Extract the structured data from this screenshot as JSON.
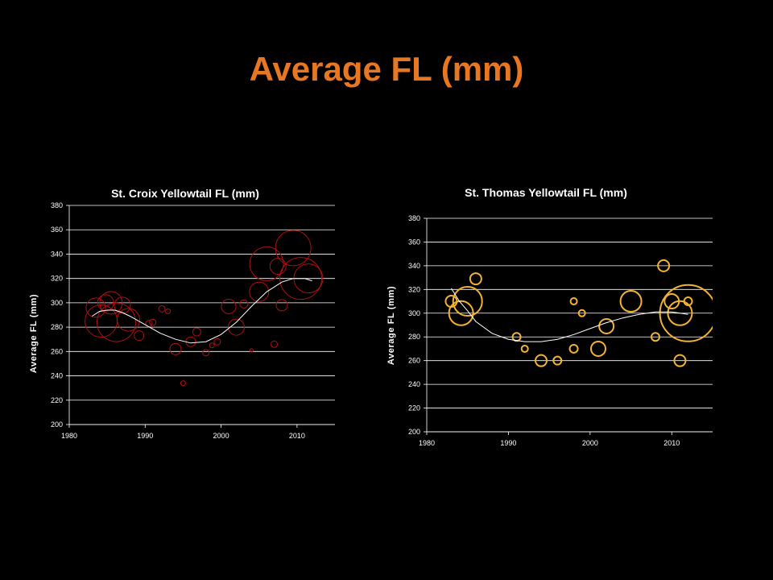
{
  "page_title": "Average FL (mm)",
  "colors": {
    "background": "#000000",
    "title": "#E87722",
    "croix_bubble": "#B01010",
    "thomas_bubble": "#F2B233",
    "trend": "#ffffff",
    "grid": "#ffffff"
  },
  "chart_data": [
    {
      "id": "croix",
      "type": "scatter",
      "subtype": "bubble",
      "title": "St. Croix Yellowtail FL (mm)",
      "ylabel": "Average FL (mm)",
      "xlabel": "",
      "xlim": [
        1980,
        2015
      ],
      "ylim": [
        200,
        380
      ],
      "xticks": [
        "1980",
        "1990",
        "2000",
        "2010"
      ],
      "yticks": [
        "200",
        "220",
        "240",
        "260",
        "280",
        "300",
        "320",
        "340",
        "360",
        "380"
      ],
      "grid": "horizontal",
      "bubble_color": "#B01010",
      "points": [
        {
          "x": 1983.5,
          "y": 296,
          "r": 12
        },
        {
          "x": 1984.2,
          "y": 285,
          "r": 20
        },
        {
          "x": 1984.8,
          "y": 300,
          "r": 10
        },
        {
          "x": 1985.5,
          "y": 300,
          "r": 14
        },
        {
          "x": 1986.2,
          "y": 284,
          "r": 24
        },
        {
          "x": 1987.0,
          "y": 298,
          "r": 10
        },
        {
          "x": 1987.8,
          "y": 286,
          "r": 14
        },
        {
          "x": 1989.2,
          "y": 273,
          "r": 6
        },
        {
          "x": 1990.5,
          "y": 283,
          "r": 4
        },
        {
          "x": 1991.0,
          "y": 284,
          "r": 4
        },
        {
          "x": 1992.2,
          "y": 295,
          "r": 4
        },
        {
          "x": 1993.0,
          "y": 293,
          "r": 3
        },
        {
          "x": 1994.0,
          "y": 262,
          "r": 7
        },
        {
          "x": 1995.0,
          "y": 234,
          "r": 3
        },
        {
          "x": 1996.0,
          "y": 268,
          "r": 6
        },
        {
          "x": 1996.8,
          "y": 276,
          "r": 5
        },
        {
          "x": 1998.0,
          "y": 259,
          "r": 4
        },
        {
          "x": 1998.8,
          "y": 265,
          "r": 3
        },
        {
          "x": 1999.5,
          "y": 268,
          "r": 4
        },
        {
          "x": 2001.0,
          "y": 297,
          "r": 9
        },
        {
          "x": 2002.0,
          "y": 280,
          "r": 10
        },
        {
          "x": 2003.0,
          "y": 299,
          "r": 5
        },
        {
          "x": 2004.0,
          "y": 261,
          "r": 2
        },
        {
          "x": 2005.0,
          "y": 309,
          "r": 12
        },
        {
          "x": 2006.0,
          "y": 332,
          "r": 21
        },
        {
          "x": 2007.0,
          "y": 266,
          "r": 4
        },
        {
          "x": 2007.5,
          "y": 330,
          "r": 10
        },
        {
          "x": 2008.0,
          "y": 298,
          "r": 7
        },
        {
          "x": 2009.5,
          "y": 345,
          "r": 22
        },
        {
          "x": 2010.5,
          "y": 320,
          "r": 26
        },
        {
          "x": 2011.5,
          "y": 320,
          "r": 18
        }
      ],
      "trend": [
        {
          "x": 1983,
          "y": 289
        },
        {
          "x": 1984,
          "y": 293
        },
        {
          "x": 1985,
          "y": 294
        },
        {
          "x": 1986,
          "y": 294
        },
        {
          "x": 1987,
          "y": 292
        },
        {
          "x": 1988,
          "y": 289
        },
        {
          "x": 1990,
          "y": 282
        },
        {
          "x": 1992,
          "y": 275
        },
        {
          "x": 1994,
          "y": 270
        },
        {
          "x": 1996,
          "y": 267
        },
        {
          "x": 1998,
          "y": 268
        },
        {
          "x": 2000,
          "y": 274
        },
        {
          "x": 2002,
          "y": 284
        },
        {
          "x": 2004,
          "y": 297
        },
        {
          "x": 2006,
          "y": 309
        },
        {
          "x": 2008,
          "y": 317
        },
        {
          "x": 2009.5,
          "y": 320
        },
        {
          "x": 2011,
          "y": 320
        },
        {
          "x": 2012,
          "y": 318
        }
      ]
    },
    {
      "id": "thomas",
      "type": "scatter",
      "subtype": "bubble",
      "title": "St. Thomas Yellowtail FL (mm)",
      "ylabel": "Average FL (mm)",
      "xlabel": "",
      "xlim": [
        1980,
        2015
      ],
      "ylim": [
        200,
        380
      ],
      "xticks": [
        "1980",
        "1990",
        "2000",
        "2010"
      ],
      "yticks": [
        "200",
        "220",
        "240",
        "260",
        "280",
        "300",
        "320",
        "340",
        "360",
        "380"
      ],
      "grid": "horizontal",
      "bubble_color": "#F2B233",
      "points": [
        {
          "x": 1983.0,
          "y": 310,
          "r": 7
        },
        {
          "x": 1984.2,
          "y": 300,
          "r": 15
        },
        {
          "x": 1985.0,
          "y": 310,
          "r": 18
        },
        {
          "x": 1986.0,
          "y": 329,
          "r": 7
        },
        {
          "x": 1991.0,
          "y": 280,
          "r": 5
        },
        {
          "x": 1992.0,
          "y": 270,
          "r": 4
        },
        {
          "x": 1994.0,
          "y": 260,
          "r": 7
        },
        {
          "x": 1996.0,
          "y": 260,
          "r": 5
        },
        {
          "x": 1998.0,
          "y": 310,
          "r": 4
        },
        {
          "x": 1998.0,
          "y": 270,
          "r": 5
        },
        {
          "x": 1999.0,
          "y": 300,
          "r": 4
        },
        {
          "x": 2001.0,
          "y": 270,
          "r": 9
        },
        {
          "x": 2002.0,
          "y": 289,
          "r": 9
        },
        {
          "x": 2005.0,
          "y": 310,
          "r": 13
        },
        {
          "x": 2008.0,
          "y": 280,
          "r": 5
        },
        {
          "x": 2009.0,
          "y": 340,
          "r": 7
        },
        {
          "x": 2010.0,
          "y": 310,
          "r": 9
        },
        {
          "x": 2011.0,
          "y": 300,
          "r": 15
        },
        {
          "x": 2011.0,
          "y": 260,
          "r": 7
        },
        {
          "x": 2012.0,
          "y": 310,
          "r": 5
        },
        {
          "x": 2012.0,
          "y": 300,
          "r": 35
        }
      ],
      "trend": [
        {
          "x": 1983,
          "y": 321
        },
        {
          "x": 1984,
          "y": 310
        },
        {
          "x": 1985,
          "y": 302
        },
        {
          "x": 1986,
          "y": 293
        },
        {
          "x": 1988,
          "y": 283
        },
        {
          "x": 1990,
          "y": 278
        },
        {
          "x": 1992,
          "y": 276
        },
        {
          "x": 1994,
          "y": 276
        },
        {
          "x": 1996,
          "y": 278
        },
        {
          "x": 1998,
          "y": 282
        },
        {
          "x": 2000,
          "y": 287
        },
        {
          "x": 2002,
          "y": 292
        },
        {
          "x": 2004,
          "y": 296
        },
        {
          "x": 2006,
          "y": 299
        },
        {
          "x": 2008,
          "y": 301
        },
        {
          "x": 2010,
          "y": 301
        },
        {
          "x": 2011,
          "y": 300
        },
        {
          "x": 2012,
          "y": 299
        }
      ]
    }
  ]
}
